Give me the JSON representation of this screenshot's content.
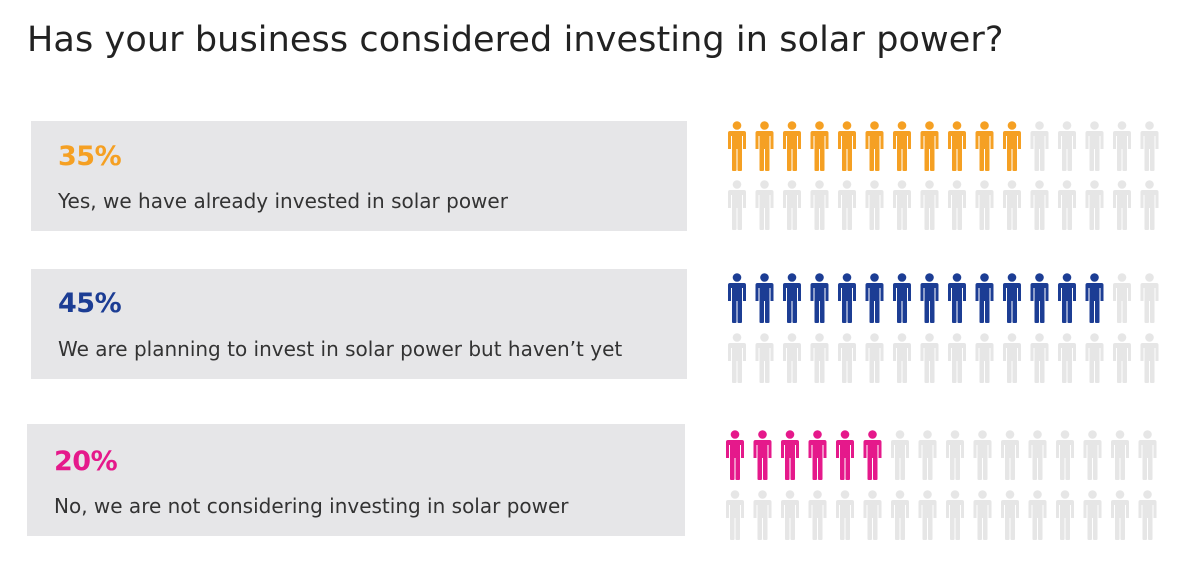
{
  "title": "Has your business considered investing in solar power?",
  "colors": {
    "inactive": "#e6e6e6",
    "panel_bg": "#e6e6e8"
  },
  "chart_data": {
    "type": "pictograph",
    "icon": "person-icon",
    "icons_per_row": 16,
    "rows": [
      {
        "value": 35,
        "value_label": "35%",
        "label": "Yes, we have already invested in solar power",
        "color": "#f5a023"
      },
      {
        "value": 45,
        "value_label": "45%",
        "label": "We are planning to invest in solar power but haven’t yet",
        "color": "#1c3d94"
      },
      {
        "value": 20,
        "value_label": "20%",
        "label": "No, we are not considering investing in solar power",
        "color": "#e5198b"
      }
    ]
  }
}
